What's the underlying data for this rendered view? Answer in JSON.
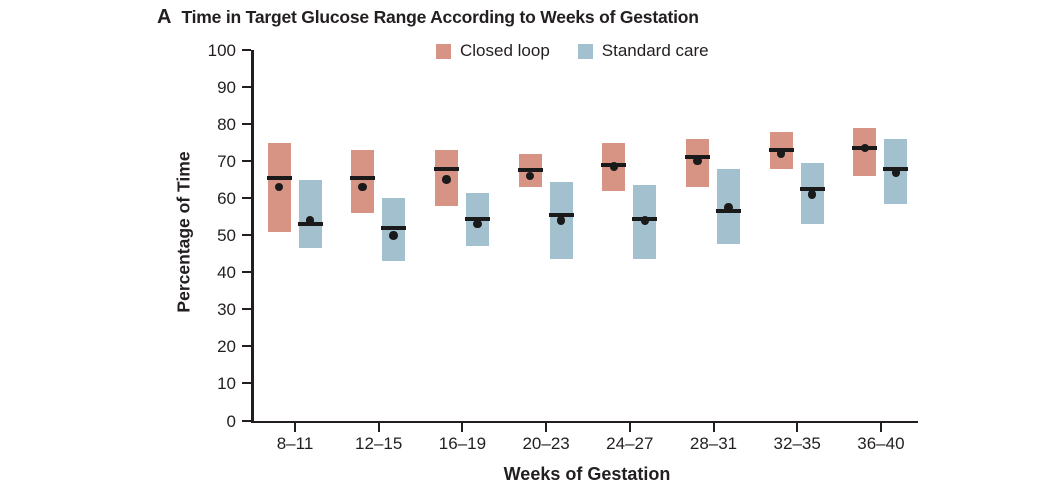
{
  "panel_label": "A",
  "title": "Time in Target Glucose Range According to Weeks of Gestation",
  "legend": [
    {
      "label": "Closed loop",
      "color": "#D79383"
    },
    {
      "label": "Standard care",
      "color": "#A3C0CF"
    }
  ],
  "colors": {
    "closed_loop": "#D79383",
    "standard_care": "#A3C0CF",
    "axis": "#231f20",
    "median_line": "#1a1a1a",
    "mean_dot": "#1a1a1a"
  },
  "chart_data": {
    "type": "box",
    "title": "Time in Target Glucose Range According to Weeks of Gestation",
    "xlabel": "Weeks of Gestation",
    "ylabel": "Percentage of Time",
    "ylim": [
      0,
      100
    ],
    "yticks": [
      0,
      10,
      20,
      30,
      40,
      50,
      60,
      70,
      80,
      90,
      100
    ],
    "grid": false,
    "legend_position": "top-center",
    "categories": [
      "8–11",
      "12–15",
      "16–19",
      "20–23",
      "24–27",
      "28–31",
      "32–35",
      "36–40"
    ],
    "series": [
      {
        "name": "Closed loop",
        "color": "#D79383",
        "boxes": [
          {
            "low": 51,
            "high": 75,
            "median": 65.5,
            "mean": 63
          },
          {
            "low": 56,
            "high": 73,
            "median": 65.5,
            "mean": 63
          },
          {
            "low": 58,
            "high": 73,
            "median": 68,
            "mean": 65
          },
          {
            "low": 63,
            "high": 72,
            "median": 67.5,
            "mean": 66
          },
          {
            "low": 62,
            "high": 75,
            "median": 69,
            "mean": 68.5
          },
          {
            "low": 63,
            "high": 76,
            "median": 71,
            "mean": 70
          },
          {
            "low": 68,
            "high": 78,
            "median": 73,
            "mean": 72
          },
          {
            "low": 66,
            "high": 79,
            "median": 73.5,
            "mean": 73.5
          }
        ]
      },
      {
        "name": "Standard care",
        "color": "#A3C0CF",
        "boxes": [
          {
            "low": 46.5,
            "high": 65,
            "median": 53,
            "mean": 54
          },
          {
            "low": 43,
            "high": 60,
            "median": 52,
            "mean": 50
          },
          {
            "low": 47,
            "high": 61.5,
            "median": 54.5,
            "mean": 53
          },
          {
            "low": 43.5,
            "high": 64.5,
            "median": 55.5,
            "mean": 54
          },
          {
            "low": 43.5,
            "high": 63.5,
            "median": 54.5,
            "mean": 54
          },
          {
            "low": 47.5,
            "high": 68,
            "median": 56.5,
            "mean": 57.5
          },
          {
            "low": 53,
            "high": 69.5,
            "median": 62.5,
            "mean": 61
          },
          {
            "low": 58.5,
            "high": 76,
            "median": 68,
            "mean": 67
          }
        ]
      }
    ]
  }
}
